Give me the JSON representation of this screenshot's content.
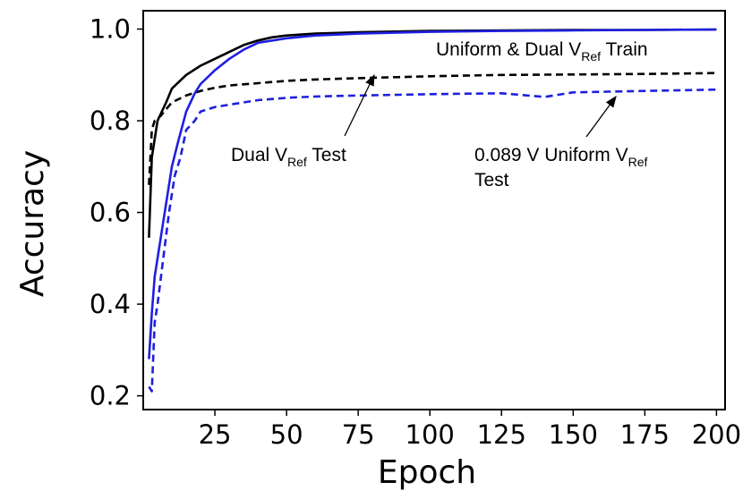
{
  "chart_data": {
    "type": "line",
    "xlabel": "Epoch",
    "ylabel": "Accuracy",
    "xlim": [
      0,
      203
    ],
    "ylim": [
      0.17,
      1.04
    ],
    "xticks": [
      25,
      50,
      75,
      100,
      125,
      150,
      175,
      200
    ],
    "xtick_labels": [
      "25",
      "50",
      "75",
      "100",
      "125",
      "150",
      "175",
      "200"
    ],
    "yticks": [
      0.2,
      0.4,
      0.6,
      0.8,
      1.0
    ],
    "ytick_labels": [
      "0.2",
      "0.4",
      "0.6",
      "0.8",
      "1.0"
    ],
    "grid": false,
    "colors": {
      "black": "#000000",
      "blue": "#1f1fe0"
    },
    "series": [
      {
        "color": "#000000",
        "style": "solid",
        "x": [
          2,
          3,
          5,
          8,
          10,
          15,
          20,
          25,
          30,
          35,
          40,
          45,
          50,
          60,
          75,
          100,
          125,
          150,
          175,
          200
        ],
        "values": [
          0.545,
          0.72,
          0.8,
          0.84,
          0.87,
          0.9,
          0.92,
          0.935,
          0.95,
          0.965,
          0.975,
          0.982,
          0.986,
          0.99,
          0.993,
          0.996,
          0.997,
          0.998,
          0.998,
          0.999
        ]
      },
      {
        "color": "#000000",
        "style": "dashed",
        "x": [
          2,
          3,
          4,
          6,
          8,
          10,
          15,
          20,
          25,
          30,
          40,
          50,
          60,
          75,
          100,
          125,
          150,
          175,
          200
        ],
        "values": [
          0.66,
          0.78,
          0.8,
          0.81,
          0.825,
          0.84,
          0.855,
          0.865,
          0.872,
          0.877,
          0.882,
          0.887,
          0.89,
          0.893,
          0.897,
          0.9,
          0.901,
          0.902,
          0.904
        ]
      },
      {
        "color": "#1f1fe0",
        "style": "solid",
        "x": [
          2,
          3,
          4,
          6,
          8,
          10,
          12,
          15,
          18,
          20,
          25,
          30,
          35,
          40,
          50,
          60,
          75,
          100,
          125,
          150,
          175,
          200
        ],
        "values": [
          0.28,
          0.38,
          0.46,
          0.54,
          0.62,
          0.7,
          0.75,
          0.82,
          0.86,
          0.88,
          0.91,
          0.935,
          0.955,
          0.97,
          0.98,
          0.986,
          0.99,
          0.994,
          0.996,
          0.997,
          0.998,
          0.999
        ]
      },
      {
        "color": "#1f1fe0",
        "style": "dashed",
        "x": [
          2,
          3,
          4,
          5,
          7,
          9,
          11,
          13,
          15,
          18,
          20,
          25,
          30,
          35,
          40,
          50,
          60,
          75,
          100,
          125,
          140,
          150,
          175,
          200
        ],
        "values": [
          0.22,
          0.21,
          0.36,
          0.4,
          0.5,
          0.6,
          0.68,
          0.72,
          0.78,
          0.8,
          0.82,
          0.83,
          0.835,
          0.84,
          0.845,
          0.85,
          0.853,
          0.855,
          0.858,
          0.86,
          0.852,
          0.862,
          0.865,
          0.868
        ]
      }
    ],
    "annotations": [
      {
        "name": "train-label",
        "text": "Uniform & Dual V",
        "sub": "Ref",
        "tail": " Train"
      },
      {
        "name": "dual-test-label",
        "text": "Dual V",
        "sub": "Ref",
        "tail": " Test",
        "arrow_to": [
          80,
          0.895
        ]
      },
      {
        "name": "uniform-test-label",
        "text": "0.089 V Uniform V",
        "sub": "Ref",
        "line2": "Test",
        "arrow_to": [
          170,
          0.865
        ]
      }
    ]
  }
}
